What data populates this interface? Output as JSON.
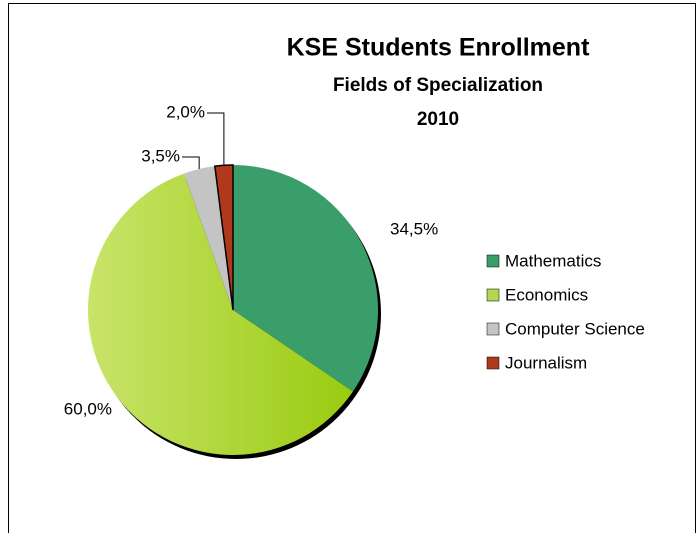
{
  "chart_data": {
    "type": "pie",
    "title": "KSE Students Enrollment",
    "subtitle": [
      "Fields of Specialization",
      "2010"
    ],
    "categories": [
      "Mathematics",
      "Economics",
      "Computer Science",
      "Journalism"
    ],
    "values": [
      34.5,
      60.0,
      3.5,
      2.0
    ],
    "value_labels": [
      "34,5%",
      "60,0%",
      "3,5%",
      "2,0%"
    ],
    "colors": [
      "#3a9e6a",
      "#b3d84e",
      "#c4c4c4",
      "#b1391b"
    ],
    "legend": "right"
  }
}
